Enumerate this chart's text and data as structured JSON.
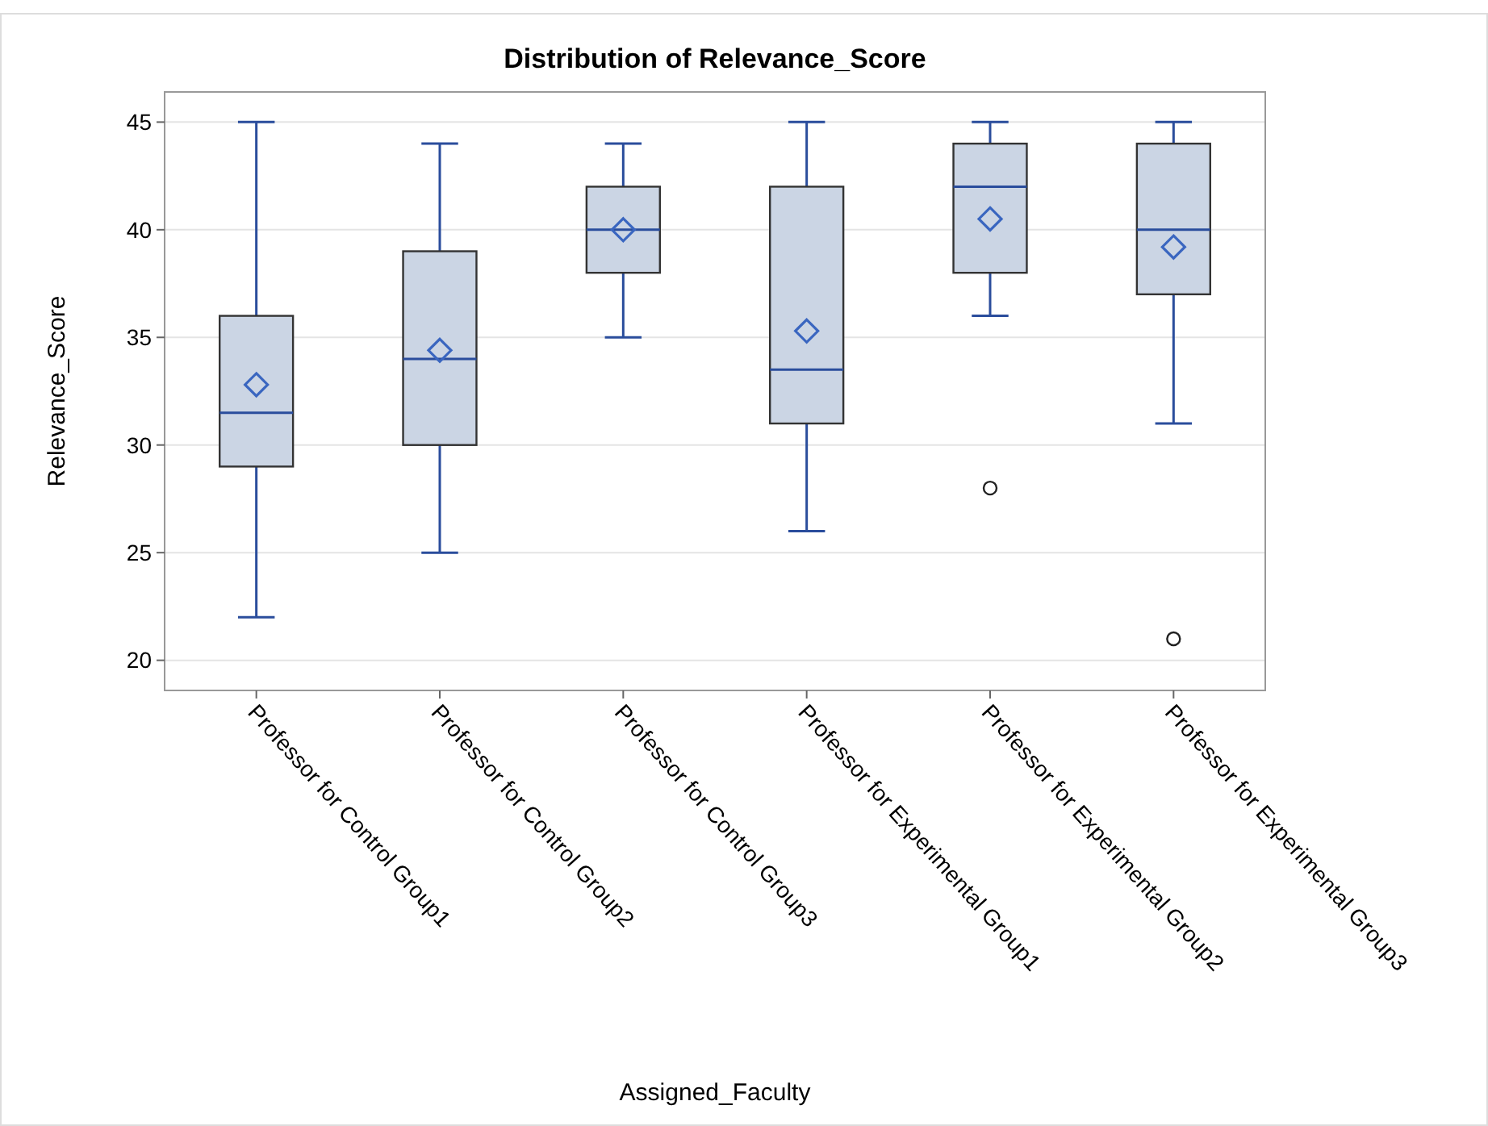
{
  "chart_data": {
    "type": "box",
    "title": "Distribution of Relevance_Score",
    "xlabel": "Assigned_Faculty",
    "ylabel": "Relevance_Score",
    "categories": [
      "Professor for Control Group1",
      "Professor for Control Group2",
      "Professor for Control Group3",
      "Professor for Experimental Group1",
      "Professor for Experimental Group2",
      "Professor for Experimental Group3"
    ],
    "boxes": [
      {
        "low": 22,
        "q1": 29,
        "median": 31.5,
        "q3": 36,
        "high": 45,
        "mean": 32.8
      },
      {
        "low": 25,
        "q1": 30,
        "median": 34,
        "q3": 39,
        "high": 44,
        "mean": 34.4
      },
      {
        "low": 35,
        "q1": 38,
        "median": 40,
        "q3": 42,
        "high": 44,
        "mean": 40
      },
      {
        "low": 26,
        "q1": 31,
        "median": 33.5,
        "q3": 42,
        "high": 45,
        "mean": 35.3
      },
      {
        "low": 36,
        "q1": 38,
        "median": 42,
        "q3": 44,
        "high": 45,
        "mean": 40.5,
        "outliers": [
          28
        ]
      },
      {
        "low": 31,
        "q1": 37,
        "median": 40,
        "q3": 44,
        "high": 45,
        "mean": 39.2,
        "outliers": [
          21
        ]
      }
    ],
    "color": "#cbd5e4",
    "ylim": [
      18.6,
      46.4
    ],
    "yticks": [
      20,
      25,
      30,
      35,
      40,
      45
    ],
    "grid": "y"
  }
}
